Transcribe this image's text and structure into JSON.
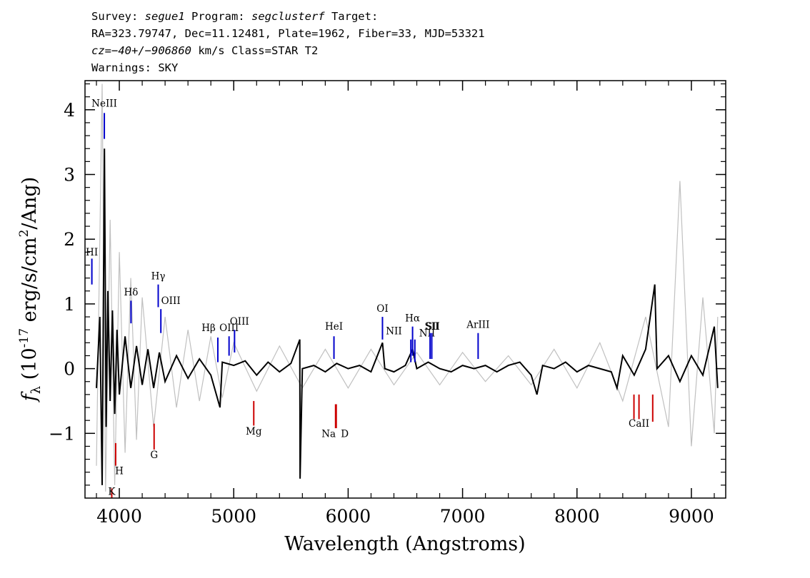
{
  "header": {
    "line1": {
      "survey_label": "Survey: ",
      "survey": "segue1",
      "program_label": " Program: ",
      "program": "segclusterf",
      "target_label": " Target:"
    },
    "line2": "RA=323.79747, Dec=11.12481, Plate=1962, Fiber=33, MJD=53321",
    "line3": {
      "cz": "cz=−40+/−906860",
      "rest": " km/s Class=STAR T2"
    },
    "line4": "Warnings: SKY"
  },
  "chart_data": {
    "type": "line",
    "xlabel": "Wavelength (Angstroms)",
    "ylabel": "f_λ (10^-17 erg/s/cm^2/Ang)",
    "xlim": [
      3700,
      9300
    ],
    "ylim": [
      -2.0,
      4.45
    ],
    "xticks": [
      4000,
      5000,
      6000,
      7000,
      8000,
      9000
    ],
    "yticks": [
      -1,
      0,
      1,
      2,
      3,
      4
    ],
    "grid": false,
    "colors": {
      "flux": "#000000",
      "error": "#c0c0c0",
      "emission": "#0000cc",
      "absorption": "#cc0000"
    },
    "series": [
      {
        "name": "flux",
        "color": "#000000",
        "points": [
          [
            3800,
            -0.3
          ],
          [
            3830,
            0.8
          ],
          [
            3850,
            -1.8
          ],
          [
            3870,
            3.4
          ],
          [
            3885,
            -0.9
          ],
          [
            3900,
            1.2
          ],
          [
            3920,
            -0.5
          ],
          [
            3940,
            0.9
          ],
          [
            3960,
            -0.7
          ],
          [
            3980,
            0.6
          ],
          [
            4000,
            -0.4
          ],
          [
            4050,
            0.5
          ],
          [
            4100,
            -0.3
          ],
          [
            4150,
            0.35
          ],
          [
            4200,
            -0.25
          ],
          [
            4250,
            0.3
          ],
          [
            4300,
            -0.3
          ],
          [
            4350,
            0.25
          ],
          [
            4400,
            -0.2
          ],
          [
            4500,
            0.2
          ],
          [
            4600,
            -0.15
          ],
          [
            4700,
            0.15
          ],
          [
            4800,
            -0.1
          ],
          [
            4880,
            -0.6
          ],
          [
            4900,
            0.1
          ],
          [
            5000,
            0.05
          ],
          [
            5100,
            0.12
          ],
          [
            5200,
            -0.1
          ],
          [
            5300,
            0.1
          ],
          [
            5400,
            -0.05
          ],
          [
            5500,
            0.08
          ],
          [
            5577,
            0.45
          ],
          [
            5580,
            -1.7
          ],
          [
            5600,
            0.0
          ],
          [
            5700,
            0.05
          ],
          [
            5800,
            -0.05
          ],
          [
            5900,
            0.08
          ],
          [
            6000,
            0.0
          ],
          [
            6100,
            0.05
          ],
          [
            6200,
            -0.05
          ],
          [
            6300,
            0.4
          ],
          [
            6320,
            0.0
          ],
          [
            6400,
            -0.05
          ],
          [
            6500,
            0.05
          ],
          [
            6563,
            0.3
          ],
          [
            6600,
            0.0
          ],
          [
            6700,
            0.1
          ],
          [
            6800,
            0.0
          ],
          [
            6900,
            -0.05
          ],
          [
            7000,
            0.05
          ],
          [
            7100,
            0.0
          ],
          [
            7200,
            0.05
          ],
          [
            7300,
            -0.05
          ],
          [
            7400,
            0.05
          ],
          [
            7500,
            0.1
          ],
          [
            7600,
            -0.1
          ],
          [
            7650,
            -0.4
          ],
          [
            7700,
            0.05
          ],
          [
            7800,
            0.0
          ],
          [
            7900,
            0.1
          ],
          [
            8000,
            -0.05
          ],
          [
            8100,
            0.05
          ],
          [
            8200,
            0.0
          ],
          [
            8300,
            -0.05
          ],
          [
            8350,
            -0.3
          ],
          [
            8400,
            0.2
          ],
          [
            8500,
            -0.1
          ],
          [
            8600,
            0.3
          ],
          [
            8680,
            1.3
          ],
          [
            8700,
            0.0
          ],
          [
            8800,
            0.2
          ],
          [
            8900,
            -0.2
          ],
          [
            9000,
            0.2
          ],
          [
            9100,
            -0.1
          ],
          [
            9200,
            0.65
          ],
          [
            9230,
            -0.3
          ]
        ]
      },
      {
        "name": "error",
        "color": "#c0c0c0",
        "points": [
          [
            3800,
            -1.5
          ],
          [
            3850,
            4.4
          ],
          [
            3880,
            -1.9
          ],
          [
            3920,
            2.3
          ],
          [
            3960,
            -1.8
          ],
          [
            4000,
            1.8
          ],
          [
            4050,
            -1.3
          ],
          [
            4100,
            1.4
          ],
          [
            4150,
            -1.1
          ],
          [
            4200,
            1.1
          ],
          [
            4300,
            -0.9
          ],
          [
            4400,
            0.8
          ],
          [
            4500,
            -0.6
          ],
          [
            4600,
            0.6
          ],
          [
            4700,
            -0.5
          ],
          [
            4800,
            0.5
          ],
          [
            4900,
            -0.45
          ],
          [
            5000,
            0.4
          ],
          [
            5200,
            -0.35
          ],
          [
            5400,
            0.35
          ],
          [
            5600,
            -0.3
          ],
          [
            5800,
            0.3
          ],
          [
            6000,
            -0.3
          ],
          [
            6200,
            0.3
          ],
          [
            6400,
            -0.25
          ],
          [
            6600,
            0.25
          ],
          [
            6800,
            -0.25
          ],
          [
            7000,
            0.25
          ],
          [
            7200,
            -0.2
          ],
          [
            7400,
            0.2
          ],
          [
            7600,
            -0.25
          ],
          [
            7800,
            0.3
          ],
          [
            8000,
            -0.3
          ],
          [
            8200,
            0.4
          ],
          [
            8400,
            -0.5
          ],
          [
            8600,
            0.8
          ],
          [
            8800,
            -0.9
          ],
          [
            8900,
            2.9
          ],
          [
            9000,
            -1.2
          ],
          [
            9100,
            1.1
          ],
          [
            9200,
            -1.0
          ],
          [
            9230,
            0.8
          ]
        ]
      }
    ],
    "emission_lines": [
      {
        "label": "NeIII",
        "x": 3869,
        "y0": 3.55,
        "y1": 3.95,
        "lx": 3869,
        "ly": 4.05
      },
      {
        "label": "HI",
        "x": 3760,
        "y0": 1.3,
        "y1": 1.7,
        "lx": 3760,
        "ly": 1.75
      },
      {
        "label": "Hδ",
        "x": 4102,
        "y0": 0.7,
        "y1": 1.05,
        "lx": 4102,
        "ly": 1.13
      },
      {
        "label": "Hγ",
        "x": 4340,
        "y0": 0.95,
        "y1": 1.3,
        "lx": 4340,
        "ly": 1.38
      },
      {
        "label": "OIII",
        "x": 4363,
        "y0": 0.55,
        "y1": 0.92,
        "lx": 4450,
        "ly": 1.0
      },
      {
        "label": "Hβ",
        "x": 4861,
        "y0": 0.1,
        "y1": 0.48,
        "lx": 4780,
        "ly": 0.58
      },
      {
        "label": "OIII",
        "x": 4959,
        "y0": 0.2,
        "y1": 0.5,
        "lx": 4959,
        "ly": 0.58
      },
      {
        "label": "OIII",
        "x": 5007,
        "y0": 0.25,
        "y1": 0.6,
        "lx": 5050,
        "ly": 0.68
      },
      {
        "label": "HeI",
        "x": 5876,
        "y0": 0.15,
        "y1": 0.5,
        "lx": 5876,
        "ly": 0.6
      },
      {
        "label": "OI",
        "x": 6300,
        "y0": 0.45,
        "y1": 0.8,
        "lx": 6300,
        "ly": 0.88
      },
      {
        "label": "NII",
        "x": 6548,
        "y0": 0.1,
        "y1": 0.45,
        "lx": 6400,
        "ly": 0.53
      },
      {
        "label": "Hα",
        "x": 6563,
        "y0": 0.2,
        "y1": 0.65,
        "lx": 6563,
        "ly": 0.73
      },
      {
        "label": "NII",
        "x": 6583,
        "y0": 0.1,
        "y1": 0.45,
        "lx": 6690,
        "ly": 0.5
      },
      {
        "label": "SII",
        "x": 6716,
        "y0": 0.15,
        "y1": 0.55,
        "lx": 6740,
        "ly": 0.6
      },
      {
        "label": "SII",
        "x": 6731,
        "y0": 0.15,
        "y1": 0.55,
        "lx": 6731,
        "ly": 0.6
      },
      {
        "label": "ArIII",
        "x": 7136,
        "y0": 0.15,
        "y1": 0.55,
        "lx": 7136,
        "ly": 0.63
      }
    ],
    "absorption_lines": [
      {
        "label": "H",
        "x": 3968,
        "y0": -1.15,
        "y1": -1.5,
        "lx": 4000,
        "ly": -1.63
      },
      {
        "label": "K",
        "x": 3934,
        "y0": -1.85,
        "y1": -2.0,
        "lx": 3934,
        "ly": -2.2
      },
      {
        "label": "G",
        "x": 4304,
        "y0": -0.85,
        "y1": -1.25,
        "lx": 4304,
        "ly": -1.38
      },
      {
        "label": "Mg",
        "x": 5175,
        "y0": -0.5,
        "y1": -0.88,
        "lx": 5175,
        "ly": -1.02
      },
      {
        "label": "Na",
        "x": 5890,
        "y0": -0.55,
        "y1": -0.92,
        "lx": 5830,
        "ly": -1.06
      },
      {
        "label": "D",
        "x": 5896,
        "y0": -0.55,
        "y1": -0.92,
        "lx": 5970,
        "ly": -1.06
      },
      {
        "label": "",
        "x": 8498,
        "y0": -0.4,
        "y1": -0.78,
        "lx": 8498,
        "ly": -0.9
      },
      {
        "label": "CaII",
        "x": 8542,
        "y0": -0.4,
        "y1": -0.78,
        "lx": 8542,
        "ly": -0.9
      },
      {
        "label": "",
        "x": 8662,
        "y0": -0.4,
        "y1": -0.82,
        "lx": 8662,
        "ly": -0.9
      }
    ]
  }
}
